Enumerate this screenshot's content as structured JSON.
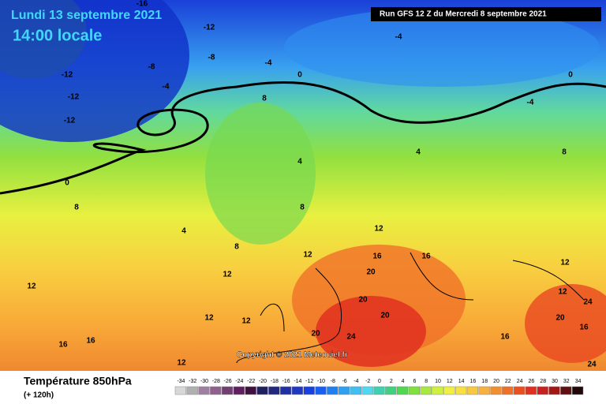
{
  "header": {
    "title": "Lundi 13 septembre 2021",
    "time": "14:00 locale",
    "run": "Run GFS 12 Z du Mercredi 8 septembre 2021"
  },
  "copyright": "Copyright © 2021 Meteociel.fr",
  "footer": {
    "parameter": "Température 850hPa",
    "lead": "(+ 120h)"
  },
  "contour_labels": [
    -16,
    -12,
    -8,
    -8,
    -4,
    0,
    -12,
    -12,
    -12,
    -4,
    -4,
    -4,
    0,
    8,
    0,
    4,
    4,
    8,
    8,
    8,
    4,
    8,
    12,
    12,
    16,
    16,
    12,
    12,
    20,
    20,
    20,
    12,
    12,
    24,
    20,
    16,
    20,
    24,
    16,
    24,
    16,
    16,
    12,
    12,
    12
  ],
  "legend": {
    "values": [
      -34,
      -32,
      -30,
      -28,
      -26,
      -24,
      -22,
      -20,
      -18,
      -16,
      -14,
      -12,
      -10,
      -8,
      -6,
      -4,
      -2,
      0,
      2,
      4,
      6,
      8,
      10,
      12,
      14,
      16,
      18,
      20,
      22,
      24,
      26,
      28,
      30,
      32,
      34
    ],
    "colors": [
      "#d8d8d8",
      "#b0b0b0",
      "#a080a0",
      "#906090",
      "#704070",
      "#602060",
      "#401040",
      "#202060",
      "#202880",
      "#2030a0",
      "#2038c0",
      "#1840e0",
      "#1860f0",
      "#2080f0",
      "#30a0f0",
      "#40c0f0",
      "#50d8f0",
      "#40d0b0",
      "#40d080",
      "#50d850",
      "#80e040",
      "#a8e840",
      "#d0f040",
      "#f0f040",
      "#f8e040",
      "#f8c840",
      "#f8b040",
      "#f09030",
      "#f07028",
      "#e85020",
      "#e03020",
      "#c82020",
      "#a01818",
      "#601010",
      "#200808"
    ]
  }
}
